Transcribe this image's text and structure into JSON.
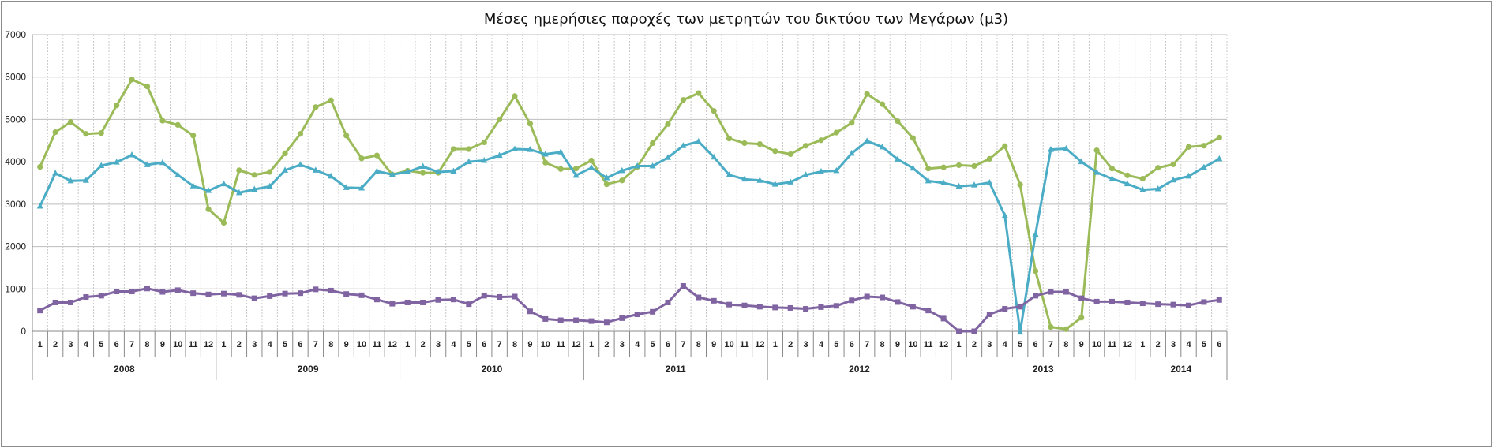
{
  "chart_data": {
    "type": "line",
    "title": "Μέσες ημερήσιες παροχές των μετρητών του δικτύου των Μεγάρων (μ3)",
    "ylim": [
      0,
      7000
    ],
    "yticks": [
      "0",
      "1000",
      "2000",
      "3000",
      "4000",
      "5000",
      "6000",
      "7000"
    ],
    "grid": true,
    "legend": "none",
    "years": [
      "2008",
      "2009",
      "2010",
      "2011",
      "2012",
      "2013",
      "2014"
    ],
    "months_per_year": [
      12,
      12,
      12,
      12,
      12,
      12,
      6
    ],
    "x": [
      "1",
      "2",
      "3",
      "4",
      "5",
      "6",
      "7",
      "8",
      "9",
      "10",
      "11",
      "12",
      "1",
      "2",
      "3",
      "4",
      "5",
      "6",
      "7",
      "8",
      "9",
      "10",
      "11",
      "12",
      "1",
      "2",
      "3",
      "4",
      "5",
      "6",
      "7",
      "8",
      "9",
      "10",
      "11",
      "12",
      "1",
      "2",
      "3",
      "4",
      "5",
      "6",
      "7",
      "8",
      "9",
      "10",
      "11",
      "12",
      "1",
      "2",
      "3",
      "4",
      "5",
      "6",
      "7",
      "8",
      "9",
      "10",
      "11",
      "12",
      "1",
      "2",
      "3",
      "4",
      "5",
      "6",
      "7",
      "8",
      "9",
      "10",
      "11",
      "12",
      "1",
      "2",
      "3",
      "4",
      "5",
      "6"
    ],
    "series": [
      {
        "color": "#9BBB59",
        "marker": "circle",
        "values": [
          3880,
          4700,
          4940,
          4660,
          4680,
          5330,
          5940,
          5780,
          4970,
          4870,
          4620,
          2880,
          2560,
          3800,
          3690,
          3760,
          4200,
          4660,
          5290,
          5450,
          4620,
          4080,
          4150,
          3700,
          3790,
          3740,
          3740,
          4300,
          4300,
          4460,
          5000,
          5550,
          4900,
          3980,
          3830,
          3840,
          4030,
          3470,
          3560,
          3880,
          4440,
          4890,
          5460,
          5620,
          5200,
          4550,
          4440,
          4420,
          4250,
          4180,
          4380,
          4510,
          4690,
          4920,
          5600,
          5360,
          4960,
          4560,
          3840,
          3870,
          3920,
          3900,
          4070,
          4370,
          3460,
          1420,
          100,
          50,
          320,
          4270,
          3840,
          3680,
          3600,
          3860,
          3940,
          4350,
          4380,
          4570
        ]
      },
      {
        "color": "#4BACC6",
        "marker": "triangle",
        "values": [
          2950,
          3730,
          3550,
          3560,
          3910,
          3990,
          4160,
          3930,
          3980,
          3690,
          3430,
          3320,
          3480,
          3270,
          3350,
          3420,
          3800,
          3930,
          3800,
          3660,
          3390,
          3380,
          3780,
          3700,
          3760,
          3890,
          3760,
          3780,
          4000,
          4030,
          4150,
          4300,
          4290,
          4180,
          4230,
          3680,
          3860,
          3620,
          3790,
          3900,
          3900,
          4100,
          4380,
          4480,
          4110,
          3690,
          3590,
          3560,
          3470,
          3520,
          3690,
          3770,
          3790,
          4200,
          4490,
          4350,
          4060,
          3850,
          3550,
          3500,
          3420,
          3450,
          3510,
          2730,
          -20,
          2290,
          4290,
          4310,
          4000,
          3750,
          3600,
          3480,
          3340,
          3360,
          3570,
          3660,
          3870,
          4070
        ]
      },
      {
        "color": "#8064A2",
        "marker": "square",
        "values": [
          490,
          680,
          680,
          810,
          840,
          940,
          940,
          1010,
          930,
          970,
          900,
          870,
          890,
          860,
          780,
          830,
          890,
          900,
          990,
          960,
          880,
          850,
          750,
          650,
          680,
          680,
          740,
          750,
          640,
          840,
          810,
          820,
          470,
          290,
          260,
          260,
          240,
          210,
          310,
          400,
          460,
          680,
          1070,
          800,
          720,
          630,
          610,
          580,
          560,
          550,
          530,
          570,
          600,
          730,
          820,
          800,
          690,
          580,
          490,
          300,
          0,
          0,
          400,
          530,
          580,
          840,
          930,
          930,
          780,
          700,
          700,
          680,
          660,
          640,
          630,
          610,
          690,
          740
        ]
      }
    ]
  }
}
